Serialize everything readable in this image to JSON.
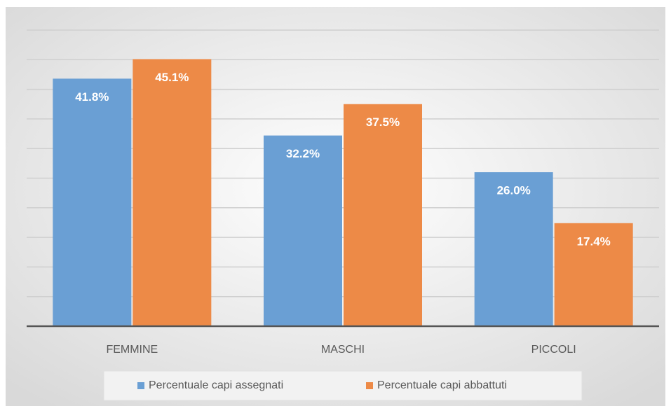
{
  "chart_data": {
    "type": "bar",
    "categories": [
      "FEMMINE",
      "MASCHI",
      "PICCOLI"
    ],
    "series": [
      {
        "name": "Percentuale capi assegnati",
        "color": "#6a9fd4",
        "values": [
          41.8,
          32.2,
          26.0
        ],
        "value_labels": [
          "41.8%",
          "32.2%",
          "26.0%"
        ]
      },
      {
        "name": "Percentuale capi abbattuti",
        "color": "#ed8a47",
        "values": [
          45.1,
          37.5,
          17.4
        ],
        "value_labels": [
          "45.1%",
          "37.5%",
          "17.4%"
        ]
      }
    ],
    "ylim": [
      0,
      50
    ],
    "yticks": [
      0,
      5,
      10,
      15,
      20,
      25,
      30,
      35,
      40,
      45,
      50
    ],
    "grid": true,
    "legend": "bottom"
  }
}
